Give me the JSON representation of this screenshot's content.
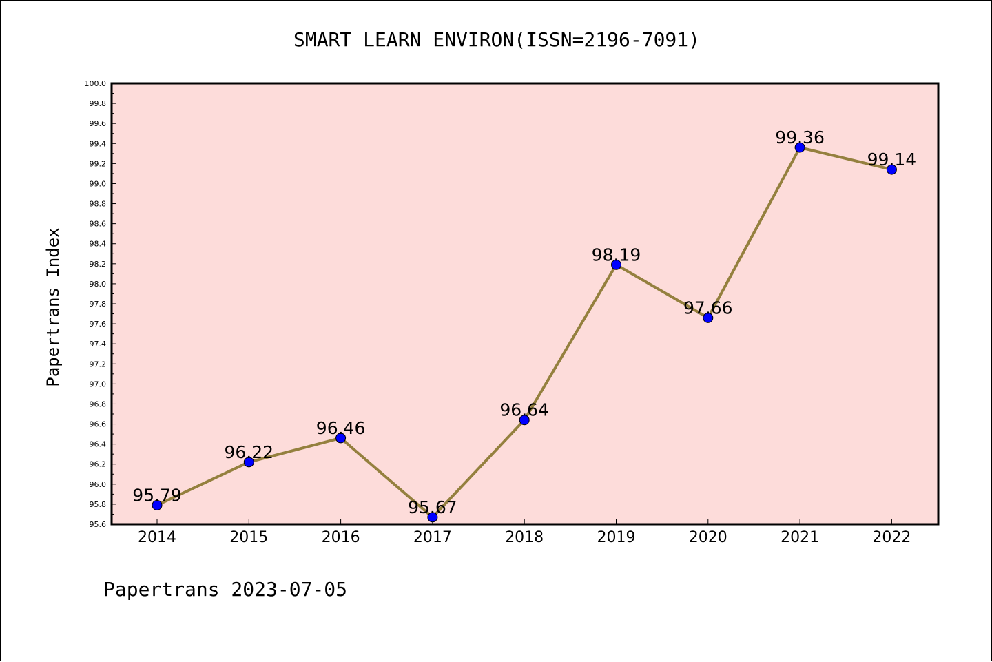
{
  "chart_data": {
    "type": "line",
    "title": "SMART LEARN ENVIRON(ISSN=2196-7091)",
    "ylabel": "Papertrans Index",
    "xlabel": "",
    "categories": [
      "2014",
      "2015",
      "2016",
      "2017",
      "2018",
      "2019",
      "2020",
      "2021",
      "2022"
    ],
    "series": [
      {
        "values": [
          95.79,
          96.22,
          96.46,
          95.67,
          96.64,
          98.19,
          97.66,
          99.36,
          99.14
        ]
      }
    ],
    "data_labels": [
      "95.79",
      "96.22",
      "96.46",
      "95.67",
      "96.64",
      "98.19",
      "97.66",
      "99.36",
      "99.14"
    ],
    "ylim": [
      95.6,
      100.0
    ],
    "yticks": [
      "95.6",
      "95.8",
      "96.0",
      "96.2",
      "96.4",
      "96.6",
      "96.8",
      "97.0",
      "97.2",
      "97.4",
      "97.6",
      "97.8",
      "98.0",
      "98.2",
      "98.4",
      "98.6",
      "98.8",
      "99.0",
      "99.2",
      "99.4",
      "99.6",
      "99.8",
      "100.0"
    ],
    "grid": false,
    "colors": {
      "plot_background": "#fddcda",
      "line": "#94803e",
      "marker": "#0000ff"
    }
  },
  "footer": "Papertrans 2023-07-05"
}
